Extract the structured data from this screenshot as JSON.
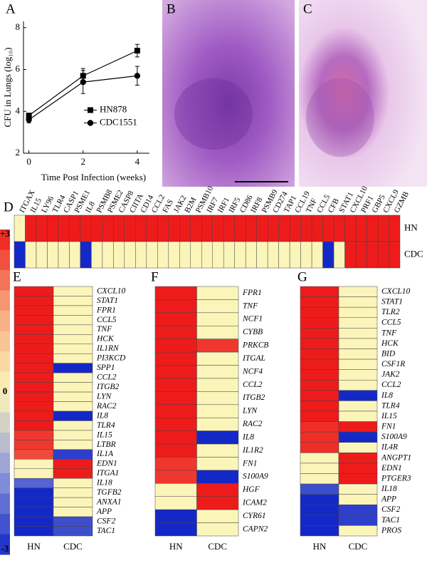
{
  "chart_data": [
    {
      "type": "line",
      "panel": "A",
      "xlabel": "Time Post Infection (weeks)",
      "ylabel": "CFU in Lungs (log₁₀)",
      "x": [
        0,
        2,
        4
      ],
      "xlim": [
        -0.2,
        4.45
      ],
      "xticks": [
        0,
        2,
        4
      ],
      "ylim": [
        2,
        8.3
      ],
      "yticks": [
        2,
        4,
        6,
        8
      ],
      "legend": "center right",
      "series": [
        {
          "name": "HN878",
          "color": "#000000",
          "marker": "square",
          "values": [
            3.8,
            5.7,
            6.9
          ],
          "errors": [
            0.1,
            0.35,
            0.3
          ]
        },
        {
          "name": "CDC1551",
          "color": "#000000",
          "marker": "circle",
          "values": [
            3.6,
            5.4,
            5.7
          ],
          "errors": [
            0.15,
            0.55,
            0.45
          ]
        }
      ]
    },
    {
      "type": "heatmap",
      "panel": "D",
      "x": [
        "ITGAX",
        "IL15",
        "LY96",
        "TLR4",
        "CASP1",
        "PSME1",
        "IL8",
        "PSMB8",
        "PSME2",
        "CASP8",
        "CIITA",
        "CD14",
        "CCL2",
        "FAS",
        "JAK2",
        "B2M",
        "PSMB10",
        "IRF7",
        "IRF1",
        "IRF5",
        "CD86",
        "IRF8",
        "PSMB9",
        "CD274",
        "TAP1",
        "CCL19",
        "TNF",
        "CCL5",
        "CFB",
        "STAT1",
        "CXCL10",
        "PRF1",
        "GBP5",
        "CXCL9",
        "GZMB"
      ],
      "y": [
        "HN",
        "CDC"
      ],
      "z": [
        [
          0,
          3,
          3,
          3,
          3,
          3,
          3,
          3,
          3,
          3,
          3,
          3,
          3,
          3,
          3,
          3,
          3,
          3,
          3,
          3,
          3,
          3,
          3,
          3,
          3,
          3,
          3,
          3,
          3,
          3,
          3,
          3,
          3,
          3,
          3
        ],
        [
          -3,
          0,
          0,
          0,
          0,
          0,
          -3,
          0,
          0,
          0,
          0,
          0,
          0,
          0,
          0,
          0,
          0,
          0,
          0,
          0,
          0,
          0,
          0,
          0,
          0,
          0,
          0,
          0,
          -3,
          0,
          3,
          3,
          3,
          3,
          3
        ]
      ]
    },
    {
      "type": "heatmap",
      "panel": "E",
      "x": [
        "HN",
        "CDC"
      ],
      "y": [
        "CXCL10",
        "STAT1",
        "FPR1",
        "CCL5",
        "TNF",
        "HCK",
        "IL1RN",
        "PI3KCD",
        "SPP1",
        "CCL2",
        "ITGB2",
        "LYN",
        "RAC2",
        "IL8",
        "TLR4",
        "IL15",
        "LTBR",
        "IL1A",
        "EDN1",
        "ITGA1",
        "IL18",
        "TGFB2",
        "ANXA1",
        "APP",
        "CSF2",
        "TAC1"
      ],
      "z": [
        [
          3,
          0
        ],
        [
          3,
          0
        ],
        [
          3,
          0
        ],
        [
          3,
          0
        ],
        [
          3,
          0
        ],
        [
          3,
          0
        ],
        [
          3,
          0
        ],
        [
          3,
          0
        ],
        [
          3,
          -3
        ],
        [
          3,
          0
        ],
        [
          3,
          0
        ],
        [
          3,
          0
        ],
        [
          3,
          0
        ],
        [
          3,
          -3
        ],
        [
          3,
          0
        ],
        [
          2.7,
          0
        ],
        [
          2.7,
          0
        ],
        [
          2.5,
          -2.7
        ],
        [
          0,
          3
        ],
        [
          0,
          3
        ],
        [
          -2.2,
          0
        ],
        [
          -3,
          0
        ],
        [
          -3,
          0
        ],
        [
          -3,
          0
        ],
        [
          -3,
          -2.5
        ],
        [
          -3,
          -2.5
        ]
      ]
    },
    {
      "type": "heatmap",
      "panel": "F",
      "x": [
        "HN",
        "CDC"
      ],
      "y": [
        "FPR1",
        "TNF",
        "NCF1",
        "CYBB",
        "PRKCB",
        "ITGAL",
        "NCF4",
        "CCL2",
        "ITGB2",
        "LYN",
        "RAC2",
        "IL8",
        "IL1R2",
        "FN1",
        "S100A9",
        "HGF",
        "ICAM2",
        "CYR61",
        "CAPN2"
      ],
      "z": [
        [
          3,
          0
        ],
        [
          3,
          0
        ],
        [
          3,
          0
        ],
        [
          3,
          0
        ],
        [
          3,
          2.7
        ],
        [
          3,
          0
        ],
        [
          3,
          0
        ],
        [
          3,
          0
        ],
        [
          3,
          0
        ],
        [
          3,
          0
        ],
        [
          3,
          0
        ],
        [
          3,
          -3
        ],
        [
          3,
          0
        ],
        [
          2.7,
          0
        ],
        [
          2.7,
          -3
        ],
        [
          0,
          3
        ],
        [
          0,
          3
        ],
        [
          -3,
          0
        ],
        [
          -3,
          0
        ]
      ]
    },
    {
      "type": "heatmap",
      "panel": "G",
      "x": [
        "HN",
        "CDC"
      ],
      "y": [
        "CXCL10",
        "STAT1",
        "TLR2",
        "CCL5",
        "TNF",
        "HCK",
        "BID",
        "CSF1R",
        "JAK2",
        "CCL2",
        "IL8",
        "TLR4",
        "IL15",
        "FN1",
        "S100A9",
        "IL4R",
        "ANGPT1",
        "EDN1",
        "PTGER3",
        "IL18",
        "APP",
        "CSF2",
        "TAC1",
        "PROS"
      ],
      "z": [
        [
          3,
          0
        ],
        [
          3,
          0
        ],
        [
          3,
          0
        ],
        [
          3,
          0
        ],
        [
          3,
          0
        ],
        [
          3,
          0
        ],
        [
          3,
          0
        ],
        [
          3,
          0
        ],
        [
          3,
          0
        ],
        [
          3,
          0
        ],
        [
          3,
          -3
        ],
        [
          3,
          0
        ],
        [
          3,
          0
        ],
        [
          2.8,
          3
        ],
        [
          2.8,
          -3
        ],
        [
          2.8,
          0
        ],
        [
          0,
          3
        ],
        [
          0,
          3
        ],
        [
          0,
          3
        ],
        [
          -2.5,
          0
        ],
        [
          -3,
          0
        ],
        [
          -3,
          -2.7
        ],
        [
          -3,
          -2.7
        ],
        [
          -3,
          0
        ]
      ]
    }
  ],
  "colorbar": {
    "lim": [
      -3,
      3
    ],
    "ticks": [
      {
        "value": 3,
        "label": "+3"
      },
      0,
      -3
    ],
    "colormap": [
      "#1428c8",
      "#8f9ad8",
      "#fbf5b9",
      "#f6a77e",
      "#ee1b1b"
    ]
  },
  "images": [
    {
      "panel": "B"
    },
    {
      "panel": "C"
    }
  ]
}
